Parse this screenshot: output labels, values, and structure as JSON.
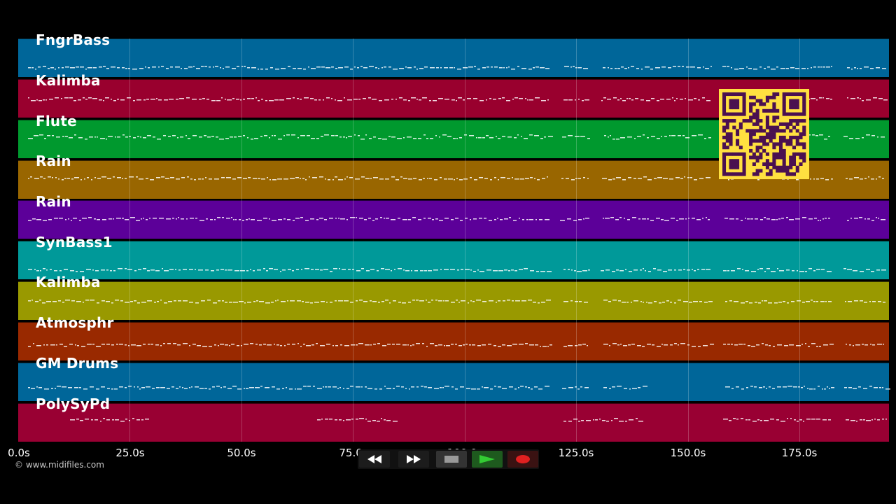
{
  "tracks": [
    {
      "name": "FngrBass",
      "color": "#006699"
    },
    {
      "name": "Kalimba",
      "color": "#99002e"
    },
    {
      "name": "Flute",
      "color": "#00992e"
    },
    {
      "name": "Rain",
      "color": "#996600"
    },
    {
      "name": "Rain",
      "color": "#5c0099"
    },
    {
      "name": "SynBass1",
      "color": "#009999"
    },
    {
      "name": "Kalimba",
      "color": "#999900"
    },
    {
      "name": "Atmosphr",
      "color": "#992900"
    },
    {
      "name": "GM Drums",
      "color": "#006699"
    },
    {
      "name": "PolySyPd",
      "color": "#990033"
    }
  ],
  "timeline": {
    "ticks": [
      "0.0s",
      "25.0s",
      "50.0s",
      "75.0s",
      "100.0s",
      "125.0s",
      "150.0s",
      "175.0s"
    ]
  },
  "copyright": "© www.midifiles.com",
  "qr_code": {
    "color": "#ffe040",
    "module_color": "#4a1050"
  },
  "transport": {
    "buttons": [
      {
        "id": "rewind",
        "icon": "rewind-icon"
      },
      {
        "id": "fast-forward",
        "icon": "fast-forward-icon"
      },
      {
        "id": "stop",
        "icon": "stop-icon"
      },
      {
        "id": "play",
        "icon": "play-icon"
      },
      {
        "id": "record",
        "icon": "record-icon"
      }
    ]
  }
}
